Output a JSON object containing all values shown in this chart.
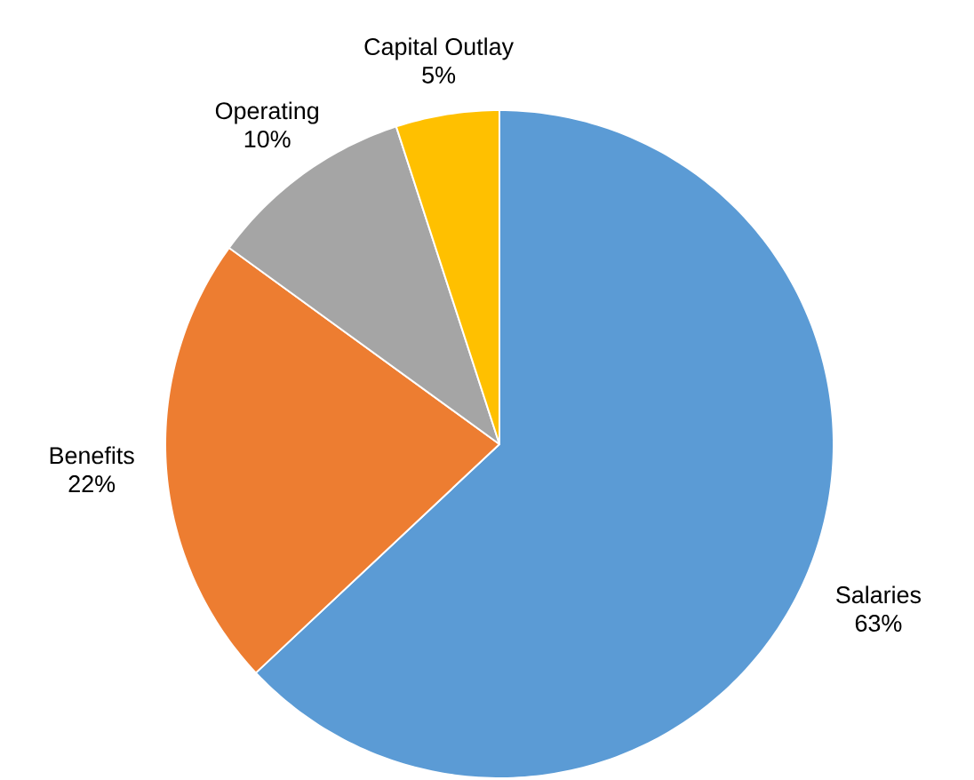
{
  "chart_data": {
    "type": "pie",
    "categories": [
      "Salaries",
      "Benefits",
      "Operating",
      "Capital Outlay"
    ],
    "values": [
      63,
      22,
      10,
      5
    ],
    "value_labels": [
      "63%",
      "22%",
      "10%",
      "5%"
    ],
    "colors": [
      "#5b9bd5",
      "#ed7d31",
      "#a5a5a5",
      "#ffc000"
    ]
  }
}
